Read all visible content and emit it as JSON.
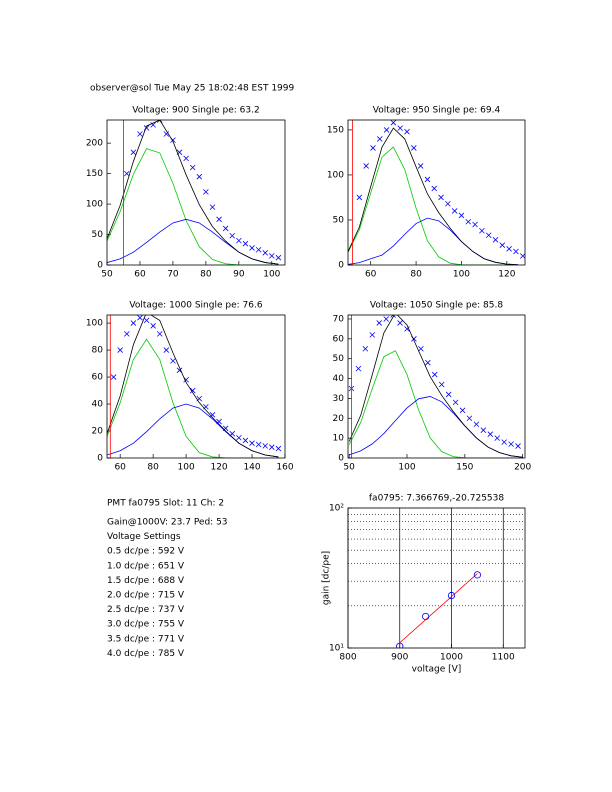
{
  "header": {
    "text": "observer@sol Tue May 25 18:02:48 EST 1999"
  },
  "chart_data": [
    {
      "type": "line",
      "title": "Voltage: 900 Single pe: 63.2",
      "xlim": [
        50,
        104
      ],
      "ylim": [
        0,
        238
      ],
      "xticks": [
        50,
        60,
        70,
        80,
        90,
        100
      ],
      "yticks": [
        0,
        50,
        100,
        150,
        200
      ],
      "series": [
        {
          "color": "#0000ff",
          "marker": "x",
          "x": [
            56,
            58,
            60,
            62,
            64,
            66,
            68,
            70,
            72,
            74,
            76,
            78,
            80,
            82,
            84,
            86,
            88,
            90,
            92,
            94,
            96,
            98,
            100,
            102
          ],
          "values": [
            150,
            185,
            215,
            225,
            230,
            238,
            215,
            205,
            185,
            175,
            160,
            145,
            120,
            95,
            75,
            60,
            48,
            40,
            35,
            28,
            25,
            20,
            15,
            12
          ]
        },
        {
          "color": "#00cc00",
          "x": [
            50,
            54,
            58,
            62,
            66,
            70,
            74,
            78,
            82,
            86,
            90,
            94,
            98,
            102
          ],
          "values": [
            39,
            88,
            149,
            191,
            184,
            134,
            73,
            30,
            9,
            2,
            0,
            0,
            0,
            0
          ]
        },
        {
          "color": "#0000ff",
          "x": [
            50,
            54,
            58,
            62,
            66,
            70,
            74,
            78,
            82,
            86,
            90,
            94,
            98,
            102
          ],
          "values": [
            4,
            10,
            21,
            37,
            54,
            69,
            75,
            69,
            54,
            37,
            21,
            10,
            4,
            1.5
          ]
        },
        {
          "color": "#000000",
          "x": [
            50,
            54,
            58,
            62,
            66,
            70,
            74,
            78,
            82,
            86,
            90,
            94,
            98,
            102
          ],
          "values": [
            43,
            98,
            170,
            228,
            238,
            203,
            148,
            99,
            63,
            39,
            21,
            10,
            4,
            1.5
          ]
        },
        {
          "color": "#ff0000",
          "x": [
            55,
            55
          ],
          "values": [
            0,
            238
          ]
        }
      ]
    },
    {
      "type": "line",
      "title": "Voltage: 950 Single pe: 69.4",
      "xlim": [
        50,
        128
      ],
      "ylim": [
        0,
        161
      ],
      "xticks": [
        60,
        80,
        100,
        120
      ],
      "yticks": [
        0,
        50,
        100,
        150
      ],
      "series": [
        {
          "color": "#0000ff",
          "marker": "x",
          "x": [
            55,
            58,
            61,
            64,
            67,
            70,
            73,
            76,
            79,
            82,
            85,
            88,
            91,
            94,
            97,
            100,
            103,
            106,
            109,
            112,
            115,
            118,
            121,
            124,
            127
          ],
          "values": [
            75,
            110,
            130,
            140,
            150,
            158,
            152,
            148,
            130,
            110,
            95,
            85,
            75,
            68,
            60,
            55,
            48,
            45,
            38,
            33,
            28,
            22,
            18,
            15,
            10
          ]
        },
        {
          "color": "#00cc00",
          "x": [
            50,
            55,
            60,
            65,
            70,
            75,
            80,
            85,
            90,
            95,
            100,
            105,
            110,
            115,
            120,
            125
          ],
          "values": [
            14,
            39,
            80,
            120,
            131,
            106,
            63,
            27,
            9,
            2,
            0.3,
            0,
            0,
            0,
            0,
            0
          ]
        },
        {
          "color": "#0000ff",
          "x": [
            50,
            55,
            60,
            65,
            70,
            75,
            80,
            85,
            90,
            95,
            100,
            105,
            110,
            115,
            120,
            125
          ],
          "values": [
            0.6,
            2.6,
            7,
            11,
            21,
            34,
            46,
            52,
            49,
            39,
            26,
            15,
            7,
            3,
            1,
            0.3
          ]
        },
        {
          "color": "#000000",
          "x": [
            50,
            55,
            60,
            65,
            70,
            75,
            80,
            85,
            90,
            95,
            100,
            105,
            110,
            115,
            120,
            125
          ],
          "values": [
            15,
            42,
            87,
            131,
            152,
            140,
            109,
            79,
            58,
            41,
            26,
            15,
            7,
            3,
            1,
            0.3
          ]
        },
        {
          "color": "#ff0000",
          "x": [
            52,
            52
          ],
          "values": [
            0,
            161
          ]
        }
      ]
    },
    {
      "type": "line",
      "title": "Voltage: 1000 Single pe: 76.6",
      "xlim": [
        52,
        160
      ],
      "ylim": [
        0,
        106
      ],
      "xticks": [
        60,
        80,
        100,
        120,
        140,
        160
      ],
      "yticks": [
        0,
        20,
        40,
        60,
        80,
        100
      ],
      "series": [
        {
          "color": "#0000ff",
          "marker": "x",
          "x": [
            56,
            60,
            64,
            68,
            72,
            76,
            80,
            84,
            88,
            92,
            96,
            100,
            104,
            108,
            112,
            116,
            120,
            124,
            128,
            132,
            136,
            140,
            144,
            148,
            152,
            156
          ],
          "values": [
            60,
            80,
            92,
            100,
            104,
            102,
            98,
            92,
            80,
            72,
            65,
            58,
            50,
            44,
            38,
            32,
            27,
            22,
            18,
            15,
            13,
            11,
            10,
            9,
            8,
            7
          ]
        },
        {
          "color": "#00cc00",
          "x": [
            52,
            60,
            68,
            76,
            84,
            92,
            100,
            108,
            116,
            124,
            132,
            140,
            148,
            156
          ],
          "values": [
            16,
            41,
            73,
            88,
            73,
            41,
            16,
            4,
            0.8,
            0.1,
            0,
            0,
            0,
            0
          ]
        },
        {
          "color": "#0000ff",
          "x": [
            52,
            60,
            68,
            76,
            84,
            92,
            100,
            108,
            116,
            124,
            132,
            140,
            148,
            156
          ],
          "values": [
            2.2,
            5.4,
            11,
            19.5,
            29,
            37,
            40,
            37,
            29,
            19.5,
            11,
            5.4,
            2.2,
            0.8
          ]
        },
        {
          "color": "#000000",
          "x": [
            52,
            60,
            68,
            76,
            84,
            92,
            100,
            108,
            116,
            124,
            132,
            140,
            148,
            156
          ],
          "values": [
            18,
            46,
            84,
            108,
            102,
            78,
            56,
            41,
            30,
            20,
            11,
            5.4,
            2.2,
            0.8
          ]
        },
        {
          "color": "#ff0000",
          "x": [
            54,
            54
          ],
          "values": [
            0,
            106
          ]
        }
      ]
    },
    {
      "type": "line",
      "title": "Voltage: 1050 Single pe: 85.8",
      "xlim": [
        49,
        202
      ],
      "ylim": [
        0,
        72
      ],
      "xticks": [
        50,
        100,
        150,
        200
      ],
      "yticks": [
        0,
        10,
        20,
        30,
        40,
        50,
        60,
        70
      ],
      "series": [
        {
          "color": "#0000ff",
          "marker": "x",
          "x": [
            52,
            58,
            64,
            70,
            76,
            82,
            88,
            94,
            100,
            106,
            112,
            118,
            124,
            130,
            136,
            142,
            148,
            154,
            160,
            166,
            172,
            178,
            184,
            190,
            196
          ],
          "values": [
            35,
            45,
            55,
            62,
            68,
            70,
            72,
            68,
            65,
            60,
            55,
            48,
            42,
            37,
            32,
            28,
            24,
            20,
            17,
            14,
            12,
            10,
            8,
            7,
            6
          ]
        },
        {
          "color": "#00cc00",
          "x": [
            50,
            60,
            70,
            80,
            90,
            100,
            110,
            120,
            130,
            140,
            150,
            160,
            170,
            180,
            190,
            200
          ],
          "values": [
            6.7,
            17.9,
            35,
            51,
            54,
            42,
            24.3,
            10.1,
            3.2,
            0.7,
            0.1,
            0,
            0,
            0,
            0,
            0
          ]
        },
        {
          "color": "#0000ff",
          "x": [
            50,
            60,
            70,
            80,
            90,
            100,
            110,
            120,
            130,
            140,
            150,
            160,
            170,
            180,
            190,
            200
          ],
          "values": [
            1.6,
            3.6,
            7.1,
            12.3,
            18.8,
            25.2,
            29.8,
            31,
            28.3,
            22.7,
            16.1,
            10.1,
            5.5,
            2.7,
            1.1,
            0.4
          ]
        },
        {
          "color": "#000000",
          "x": [
            50,
            60,
            70,
            80,
            90,
            100,
            110,
            120,
            130,
            140,
            150,
            160,
            170,
            180,
            190,
            200
          ],
          "values": [
            8.3,
            21.5,
            42,
            63,
            73,
            67,
            54,
            41,
            31.5,
            23.4,
            16.2,
            10.1,
            5.5,
            2.7,
            1.1,
            0.4
          ]
        },
        {
          "color": "#ff0000",
          "x": [
            52,
            52
          ],
          "values": [
            0,
            72
          ]
        }
      ]
    },
    {
      "type": "line",
      "title": "fa0795: 7.366769,-20.725538",
      "xlabel": "voltage [V]",
      "ylabel": "gain [dc/pe]",
      "xlim": [
        800,
        1142
      ],
      "ylim": [
        10,
        100
      ],
      "yscale": "log",
      "grid": true,
      "xticks": [
        800,
        900,
        1000,
        1100
      ],
      "yticks": [
        {
          "value": 10,
          "label": "10¹"
        },
        {
          "value": 100,
          "label": "10²"
        }
      ],
      "yminorticks": [
        20,
        30,
        40,
        50,
        60,
        70,
        80,
        90
      ],
      "series": [
        {
          "color": "#ff0000",
          "x": [
            900,
            1050
          ],
          "values": [
            10.9,
            34
          ]
        },
        {
          "color": "#0000ff",
          "marker": "o",
          "x": [
            900,
            950,
            1000,
            1050
          ],
          "values": [
            10.3,
            16.8,
            23.7,
            33.3
          ]
        }
      ]
    }
  ],
  "info": {
    "lines": [
      "PMT fa0795 Slot: 11 Ch: 2",
      "Gain@1000V: 23.7 Ped: 53",
      "Voltage Settings",
      "0.5 dc/pe : 592 V",
      "1.0 dc/pe : 651 V",
      "1.5 dc/pe : 688 V",
      "2.0 dc/pe : 715 V",
      "2.5 dc/pe : 737 V",
      "3.0 dc/pe : 755 V",
      "3.5 dc/pe : 771 V",
      "4.0 dc/pe : 785 V"
    ]
  }
}
